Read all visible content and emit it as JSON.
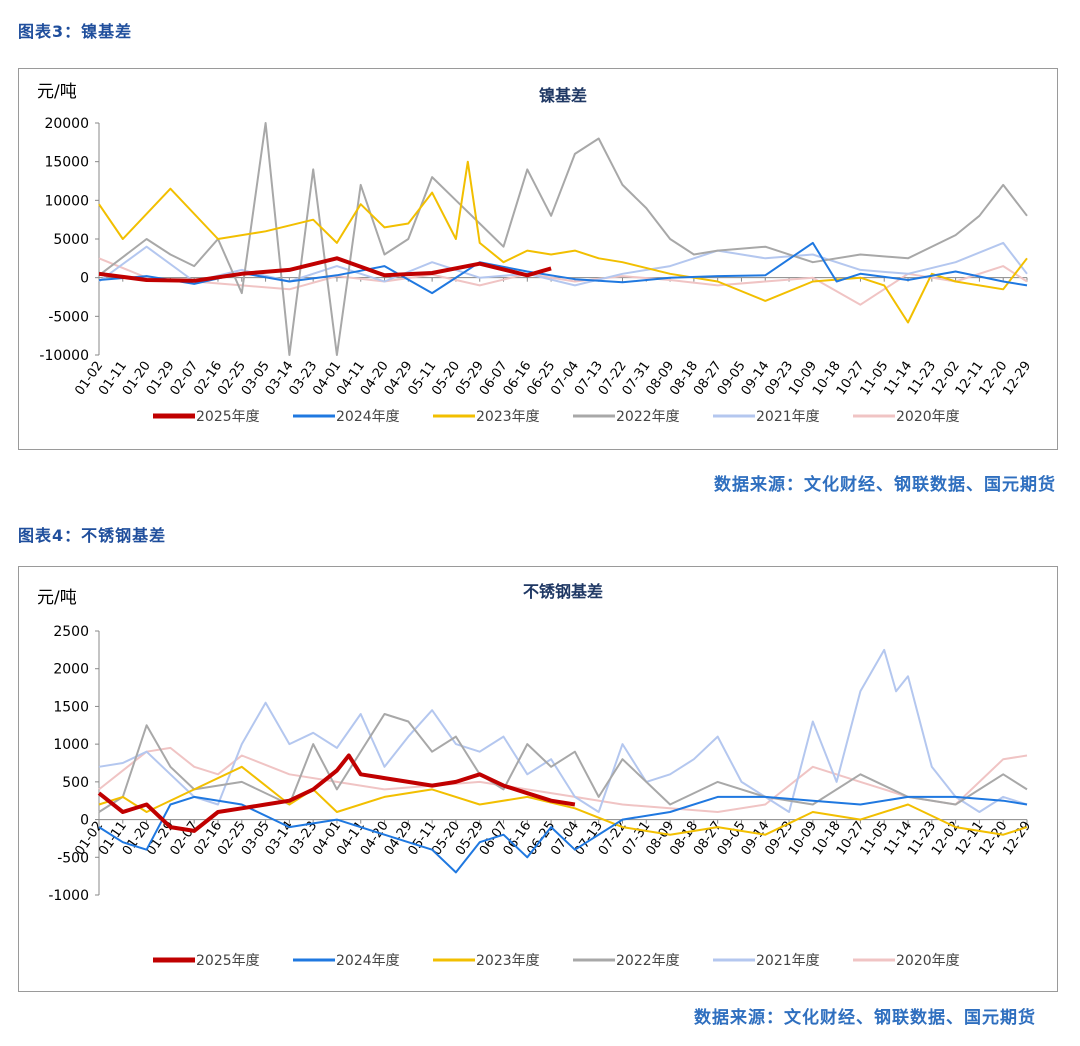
{
  "figure1": {
    "caption": "图表3：镍基差",
    "source": "数据来源：文化财经、钢联数据、国元期货"
  },
  "figure2": {
    "caption": "图表4：不锈钢基差",
    "source": "数据来源：文化财经、钢联数据、国元期货"
  },
  "chart_data": [
    {
      "type": "line",
      "title": "镍基差",
      "ylabel": "元/吨",
      "xlabel": "",
      "ylim": [
        -10000,
        20000
      ],
      "yticks": [
        -10000,
        -5000,
        0,
        5000,
        10000,
        15000,
        20000
      ],
      "x_categories": [
        "01-02",
        "01-11",
        "01-20",
        "01-29",
        "02-07",
        "02-16",
        "02-25",
        "03-05",
        "03-14",
        "03-23",
        "04-01",
        "04-11",
        "04-20",
        "04-29",
        "05-11",
        "05-20",
        "05-29",
        "06-07",
        "06-16",
        "06-25",
        "07-04",
        "07-13",
        "07-22",
        "07-31",
        "08-09",
        "08-18",
        "08-27",
        "09-05",
        "09-14",
        "09-23",
        "10-09",
        "10-18",
        "10-27",
        "11-05",
        "11-14",
        "11-23",
        "12-02",
        "12-11",
        "12-20",
        "12-29"
      ],
      "legend_position": "bottom",
      "grid": false,
      "series": [
        {
          "name": "2025年度",
          "color": "#c00000",
          "width": 4,
          "x": [
            0,
            2,
            4,
            6,
            8,
            10,
            12,
            14,
            16,
            18,
            19
          ],
          "values": [
            500,
            -300,
            -400,
            500,
            1000,
            2500,
            300,
            600,
            1800,
            300,
            1200
          ]
        },
        {
          "name": "2024年度",
          "color": "#1f78e0",
          "width": 2,
          "x": [
            0,
            2,
            4,
            6,
            8,
            10,
            12,
            14,
            16,
            18,
            20,
            22,
            24,
            26,
            28,
            30,
            31,
            32,
            34,
            36,
            38,
            39
          ],
          "values": [
            -300,
            200,
            -800,
            600,
            -500,
            300,
            1500,
            -2000,
            2000,
            800,
            -200,
            -600,
            0,
            200,
            300,
            4500,
            -500,
            500,
            -300,
            800,
            -500,
            -1000
          ]
        },
        {
          "name": "2023年度",
          "color": "#f2bf00",
          "width": 2,
          "x": [
            0,
            1,
            3,
            5,
            7,
            9,
            10,
            11,
            12,
            13,
            14,
            15,
            15.5,
            16,
            17,
            18,
            19,
            20,
            21,
            22,
            24,
            26,
            28,
            30,
            32,
            33,
            34,
            35,
            36,
            38,
            39
          ],
          "values": [
            9500,
            5000,
            11500,
            5000,
            6000,
            7500,
            4500,
            9500,
            6500,
            7000,
            11000,
            5000,
            15000,
            4500,
            2000,
            3500,
            3000,
            3500,
            2500,
            2000,
            500,
            -500,
            -3000,
            -500,
            0,
            -1000,
            -5800,
            500,
            -500,
            -1500,
            2500
          ]
        },
        {
          "name": "2022年度",
          "color": "#a8a8a8",
          "width": 2,
          "x": [
            0,
            2,
            3,
            4,
            5,
            6,
            7,
            8,
            9,
            10,
            11,
            12,
            13,
            14,
            15,
            16,
            17,
            18,
            19,
            20,
            21,
            22,
            23,
            24,
            25,
            26,
            28,
            30,
            32,
            34,
            36,
            37,
            38,
            39
          ],
          "values": [
            300,
            5000,
            3000,
            1500,
            5000,
            -2000,
            20000,
            -10000,
            14000,
            -10000,
            12000,
            3000,
            5000,
            13000,
            10000,
            7000,
            4000,
            14000,
            8000,
            16000,
            18000,
            12000,
            9000,
            5000,
            3000,
            3500,
            4000,
            2000,
            3000,
            2500,
            5500,
            8000,
            12000,
            8000
          ]
        },
        {
          "name": "2021年度",
          "color": "#b4c7ef",
          "width": 2,
          "x": [
            0,
            2,
            4,
            6,
            8,
            10,
            12,
            14,
            16,
            18,
            20,
            22,
            24,
            26,
            28,
            30,
            32,
            34,
            36,
            38,
            39
          ],
          "values": [
            -500,
            4000,
            -500,
            1000,
            -500,
            1500,
            -500,
            2000,
            0,
            500,
            -1000,
            500,
            1500,
            3500,
            2500,
            3000,
            1000,
            500,
            2000,
            4500,
            500
          ]
        },
        {
          "name": "2020年度",
          "color": "#f0c4c4",
          "width": 2,
          "x": [
            0,
            2,
            4,
            6,
            8,
            10,
            12,
            14,
            16,
            18,
            20,
            22,
            24,
            26,
            28,
            30,
            32,
            34,
            36,
            38,
            39
          ],
          "values": [
            2500,
            0,
            -500,
            -1000,
            -1500,
            200,
            -500,
            400,
            -1000,
            500,
            -500,
            200,
            -300,
            -1000,
            -500,
            0,
            -3500,
            500,
            -500,
            1500,
            -500
          ]
        }
      ]
    },
    {
      "type": "line",
      "title": "不锈钢基差",
      "ylabel": "元/吨",
      "xlabel": "",
      "ylim": [
        -1000,
        2500
      ],
      "yticks": [
        -1000,
        -500,
        0,
        500,
        1000,
        1500,
        2000,
        2500
      ],
      "x_categories": [
        "01-02",
        "01-11",
        "01-20",
        "01-29",
        "02-07",
        "02-16",
        "02-25",
        "03-05",
        "03-14",
        "03-23",
        "04-01",
        "04-11",
        "04-20",
        "04-29",
        "05-11",
        "05-20",
        "05-29",
        "06-07",
        "06-16",
        "06-25",
        "07-04",
        "07-13",
        "07-22",
        "07-31",
        "08-09",
        "08-18",
        "08-27",
        "09-05",
        "09-14",
        "09-23",
        "10-09",
        "10-18",
        "10-27",
        "11-05",
        "11-14",
        "11-23",
        "12-02",
        "12-11",
        "12-20",
        "12-29"
      ],
      "legend_position": "bottom",
      "grid": false,
      "series": [
        {
          "name": "2025年度",
          "color": "#c00000",
          "width": 4,
          "x": [
            0,
            1,
            2,
            3,
            4,
            5,
            6,
            7,
            8,
            9,
            10,
            10.5,
            11,
            12,
            13,
            14,
            15,
            16,
            17,
            18,
            19,
            20
          ],
          "values": [
            350,
            100,
            200,
            -100,
            -150,
            100,
            150,
            200,
            250,
            400,
            650,
            850,
            600,
            550,
            500,
            450,
            500,
            600,
            450,
            350,
            250,
            200
          ]
        },
        {
          "name": "2024年度",
          "color": "#1f78e0",
          "width": 2,
          "x": [
            0,
            1,
            2,
            3,
            4,
            6,
            8,
            10,
            12,
            14,
            15,
            16,
            17,
            18,
            19,
            20,
            22,
            24,
            26,
            28,
            30,
            32,
            34,
            36,
            38,
            39
          ],
          "values": [
            -100,
            -300,
            -400,
            200,
            300,
            200,
            -100,
            0,
            -200,
            -400,
            -700,
            -300,
            -200,
            -500,
            -100,
            -400,
            0,
            100,
            300,
            300,
            250,
            200,
            300,
            300,
            250,
            200
          ]
        },
        {
          "name": "2023年度",
          "color": "#f2bf00",
          "width": 2,
          "x": [
            0,
            1,
            2,
            4,
            6,
            8,
            9,
            10,
            12,
            14,
            16,
            18,
            20,
            22,
            24,
            26,
            28,
            30,
            32,
            34,
            36,
            38,
            39
          ],
          "values": [
            200,
            300,
            100,
            400,
            700,
            200,
            400,
            100,
            300,
            400,
            200,
            300,
            150,
            -100,
            -200,
            -100,
            -200,
            100,
            0,
            200,
            -100,
            -200,
            -100
          ]
        },
        {
          "name": "2022年度",
          "color": "#a8a8a8",
          "width": 2,
          "x": [
            0,
            1,
            2,
            3,
            4,
            6,
            8,
            9,
            10,
            12,
            13,
            14,
            15,
            16,
            17,
            18,
            19,
            20,
            21,
            22,
            24,
            26,
            28,
            30,
            32,
            34,
            36,
            38,
            39
          ],
          "values": [
            100,
            300,
            1250,
            700,
            400,
            500,
            200,
            1000,
            400,
            1400,
            1300,
            900,
            1100,
            600,
            400,
            1000,
            700,
            900,
            300,
            800,
            200,
            500,
            300,
            200,
            600,
            300,
            200,
            600,
            400
          ]
        },
        {
          "name": "2021年度",
          "color": "#b4c7ef",
          "width": 2,
          "x": [
            0,
            1,
            2,
            3,
            4,
            5,
            6,
            7,
            8,
            9,
            10,
            11,
            12,
            13,
            14,
            15,
            16,
            17,
            18,
            19,
            20,
            21,
            22,
            23,
            24,
            25,
            26,
            27,
            28,
            29,
            30,
            31,
            32,
            33,
            33.5,
            34,
            35,
            36,
            37,
            38,
            39
          ],
          "values": [
            700,
            750,
            900,
            600,
            300,
            200,
            1000,
            1550,
            1000,
            1150,
            950,
            1400,
            700,
            1100,
            1450,
            1000,
            900,
            1100,
            600,
            800,
            300,
            100,
            1000,
            500,
            600,
            800,
            1100,
            500,
            300,
            100,
            1300,
            500,
            1700,
            2250,
            1700,
            1900,
            700,
            300,
            100,
            300,
            200
          ]
        },
        {
          "name": "2020年度",
          "color": "#f0c4c4",
          "width": 2,
          "x": [
            0,
            2,
            3,
            4,
            5,
            6,
            8,
            10,
            12,
            14,
            16,
            18,
            20,
            22,
            24,
            26,
            28,
            30,
            32,
            34,
            36,
            38,
            39
          ],
          "values": [
            400,
            900,
            950,
            700,
            600,
            850,
            600,
            500,
            400,
            450,
            500,
            400,
            300,
            200,
            150,
            100,
            200,
            700,
            500,
            300,
            200,
            800,
            850
          ]
        }
      ]
    }
  ]
}
